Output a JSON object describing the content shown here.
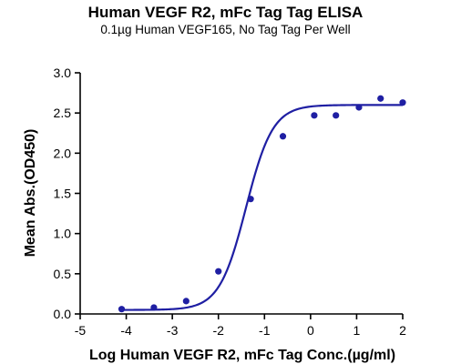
{
  "chart_data": {
    "type": "scatter",
    "title": "Human VEGF R2, mFc Tag Tag ELISA",
    "subtitle": "0.1µg Human VEGF165, No Tag Tag Per Well",
    "xlabel": "Log Human VEGF R2, mFc Tag Conc.(µg/ml)",
    "ylabel": "Mean Abs.(OD450)",
    "xlim": [
      -5,
      2
    ],
    "ylim": [
      0,
      3.0
    ],
    "x_ticks": [
      "-5",
      "-4",
      "-3",
      "-2",
      "-1",
      "0",
      "1",
      "2"
    ],
    "y_ticks": [
      "0.0",
      "0.5",
      "1.0",
      "1.5",
      "2.0",
      "2.5",
      "3.0"
    ],
    "grid": false,
    "color": "#1f1fa3",
    "series": [
      {
        "points": [
          {
            "x": -4.1,
            "y": 0.06
          },
          {
            "x": -3.4,
            "y": 0.08
          },
          {
            "x": -2.7,
            "y": 0.16
          },
          {
            "x": -2.0,
            "y": 0.53
          },
          {
            "x": -1.3,
            "y": 1.43
          },
          {
            "x": -0.6,
            "y": 2.21
          },
          {
            "x": 0.08,
            "y": 2.47
          },
          {
            "x": 0.55,
            "y": 2.47
          },
          {
            "x": 1.05,
            "y": 2.57
          },
          {
            "x": 1.52,
            "y": 2.68
          },
          {
            "x": 2.0,
            "y": 2.63
          }
        ],
        "fit": {
          "model": "4PL",
          "bottom": 0.05,
          "top": 2.6,
          "logEC50": -1.4,
          "hill": 1.5
        }
      }
    ]
  }
}
